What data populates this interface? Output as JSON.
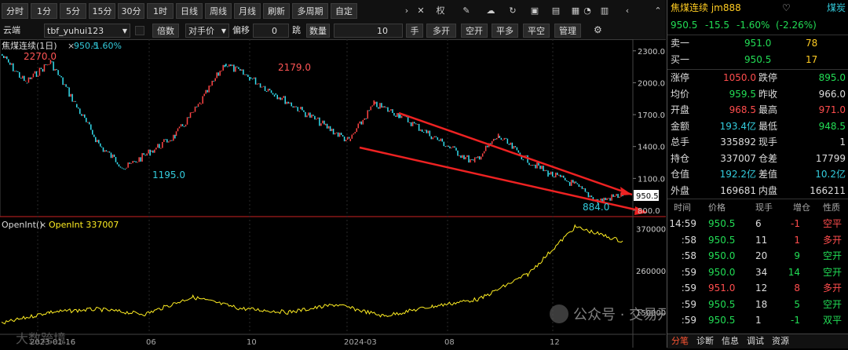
{
  "toolbar": {
    "periods": [
      "分时",
      "1分",
      "5分",
      "15分",
      "30分",
      "1时",
      "日线",
      "周线",
      "月线",
      "刷新",
      "多周期",
      "自定"
    ],
    "icons": [
      "chevron-right-icon",
      "x-icon",
      "rights-icon",
      "pencil-icon",
      "cloud-icon",
      "refresh-icon",
      "image-icon",
      "folder-icon",
      "grid-icon",
      "bell-icon",
      "trash-icon",
      "chevron-left-icon",
      "chevron-up-icon"
    ],
    "rights_label": "权"
  },
  "order_bar": {
    "account": "云端",
    "account_name": "tbf_yuhui123",
    "multiple_label": "倍数",
    "price_type": "对手价",
    "offset_label": "偏移",
    "offset_value": "0",
    "tick_label": "跳",
    "qty_label": "数量",
    "qty_value": "10",
    "hand_label": "手",
    "buttons": [
      "多开",
      "空开",
      "平多",
      "平空",
      "管理"
    ]
  },
  "main_chart": {
    "legend_name": "焦煤连续(1日)",
    "legend_value": "950.5",
    "legend_change": "-1.60%",
    "annotations": [
      "2270.0",
      "2179.0",
      "1195.0",
      "884.0"
    ],
    "price_label": "950.5",
    "y_ticks": [
      "2300.0",
      "2000.0",
      "1700.0",
      "1400.0",
      "1100.0",
      "800.0"
    ]
  },
  "oi_chart": {
    "legend_name": "OpenInt()",
    "legend_value": "OpenInt 337007",
    "y_ticks": [
      "370000",
      "260000",
      "150000"
    ]
  },
  "x_labels": [
    "2023-01-16",
    "06",
    "10",
    "2024-03",
    "08",
    "12"
  ],
  "watermark": {
    "left": "大数跨境",
    "right": "公众号 · 交易开拓者TB"
  },
  "chart_data": {
    "type": "line",
    "title": "焦煤连续(1日)",
    "approx_price_series": [
      {
        "x": "2023-01-16",
        "y": 2270
      },
      {
        "x": "2023-02",
        "y": 2000
      },
      {
        "x": "2023-03",
        "y": 2200
      },
      {
        "x": "2023-04",
        "y": 1800
      },
      {
        "x": "2023-05",
        "y": 1400
      },
      {
        "x": "2023-06",
        "y": 1195
      },
      {
        "x": "2023-07",
        "y": 1350
      },
      {
        "x": "2023-08",
        "y": 1500
      },
      {
        "x": "2023-09",
        "y": 1800
      },
      {
        "x": "2023-10",
        "y": 2179
      },
      {
        "x": "2023-11",
        "y": 2050
      },
      {
        "x": "2023-12",
        "y": 1900
      },
      {
        "x": "2024-01",
        "y": 1750
      },
      {
        "x": "2024-02",
        "y": 1600
      },
      {
        "x": "2024-03",
        "y": 1450
      },
      {
        "x": "2024-04",
        "y": 1800
      },
      {
        "x": "2024-05",
        "y": 1700
      },
      {
        "x": "2024-06",
        "y": 1550
      },
      {
        "x": "2024-07",
        "y": 1400
      },
      {
        "x": "2024-08",
        "y": 1250
      },
      {
        "x": "2024-09",
        "y": 1500
      },
      {
        "x": "2024-10",
        "y": 1300
      },
      {
        "x": "2024-11",
        "y": 1150
      },
      {
        "x": "2024-12",
        "y": 1050
      },
      {
        "x": "2025-01",
        "y": 884
      },
      {
        "x": "2025-02",
        "y": 950.5
      }
    ],
    "approx_openint_series": [
      {
        "x": "2023-01-16",
        "y": 120000
      },
      {
        "x": "2023-03",
        "y": 150000
      },
      {
        "x": "2023-06",
        "y": 158000
      },
      {
        "x": "2023-08",
        "y": 145000
      },
      {
        "x": "2023-10",
        "y": 190000
      },
      {
        "x": "2023-12",
        "y": 160000
      },
      {
        "x": "2024-03",
        "y": 150000
      },
      {
        "x": "2024-05",
        "y": 170000
      },
      {
        "x": "2024-08",
        "y": 140000
      },
      {
        "x": "2024-10",
        "y": 165000
      },
      {
        "x": "2024-12",
        "y": 185000
      },
      {
        "x": "2025-01",
        "y": 250000
      },
      {
        "x": "2025-02",
        "y": 375000
      },
      {
        "x": "2025-03",
        "y": 337007
      }
    ],
    "price_ylim": [
      800,
      2350
    ],
    "openint_ylim": [
      100000,
      390000
    ],
    "ylabel": ""
  },
  "quote": {
    "title": "焦煤连续 jm888",
    "sector": "煤炭",
    "last": "950.5",
    "change": "-15.5",
    "change_pct": "-1.60%",
    "change_pct2": "(-2.26%)",
    "ask_label": "卖一",
    "ask_price": "951.0",
    "ask_vol": "78",
    "bid_label": "买一",
    "bid_price": "950.5",
    "bid_vol": "17",
    "stats": [
      {
        "l1": "涨停",
        "v1": "1050.0",
        "c1": "r",
        "l2": "跌停",
        "v2": "895.0",
        "c2": "g"
      },
      {
        "l1": "均价",
        "v1": "959.5",
        "c1": "g",
        "l2": "昨收",
        "v2": "966.0",
        "c2": "w"
      },
      {
        "l1": "开盘",
        "v1": "968.5",
        "c1": "r",
        "l2": "最高",
        "v2": "971.0",
        "c2": "r"
      },
      {
        "l1": "金额",
        "v1": "193.4亿",
        "c1": "c",
        "l2": "最低",
        "v2": "948.5",
        "c2": "g"
      },
      {
        "l1": "总手",
        "v1": "335892",
        "c1": "w",
        "l2": "现手",
        "v2": "1",
        "c2": "w"
      },
      {
        "l1": "持仓",
        "v1": "337007",
        "c1": "w",
        "l2": "仓差",
        "v2": "17799",
        "c2": "w"
      },
      {
        "l1": "仓值",
        "v1": "192.2亿",
        "c1": "c",
        "l2": "差值",
        "v2": "10.2亿",
        "c2": "c"
      },
      {
        "l1": "外盘",
        "v1": "169681",
        "c1": "w",
        "l2": "内盘",
        "v2": "166211",
        "c2": "w"
      }
    ],
    "tick_header": [
      "时间",
      "价格",
      "现手",
      "增仓",
      "性质"
    ],
    "ticks": [
      {
        "t": "14:59",
        "p": "950.5",
        "pc": "g",
        "v": "6",
        "i": "-1",
        "ic": "r",
        "k": "空平",
        "kc": "r"
      },
      {
        "t": ":58",
        "p": "950.5",
        "pc": "g",
        "v": "11",
        "i": "1",
        "ic": "r",
        "k": "多开",
        "kc": "r"
      },
      {
        "t": ":58",
        "p": "950.0",
        "pc": "g",
        "v": "20",
        "i": "9",
        "ic": "g",
        "k": "空开",
        "kc": "g"
      },
      {
        "t": ":59",
        "p": "950.0",
        "pc": "g",
        "v": "34",
        "i": "14",
        "ic": "g",
        "k": "空开",
        "kc": "g"
      },
      {
        "t": ":59",
        "p": "951.0",
        "pc": "r",
        "v": "12",
        "i": "8",
        "ic": "r",
        "k": "多开",
        "kc": "r"
      },
      {
        "t": ":59",
        "p": "950.5",
        "pc": "g",
        "v": "18",
        "i": "5",
        "ic": "g",
        "k": "空开",
        "kc": "g"
      },
      {
        "t": ":59",
        "p": "950.5",
        "pc": "g",
        "v": "1",
        "i": "-1",
        "ic": "g",
        "k": "双平",
        "kc": "g"
      }
    ],
    "bottom_tabs": [
      "分笔",
      "诊断",
      "信息",
      "调试",
      "资源"
    ]
  }
}
